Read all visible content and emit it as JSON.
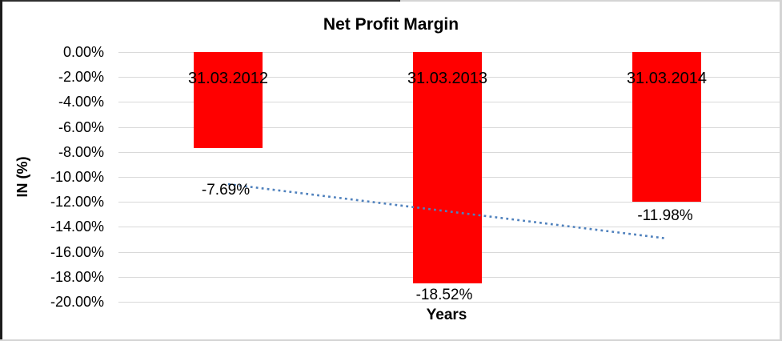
{
  "chart_data": {
    "type": "bar",
    "title": "Net Profit Margin",
    "xlabel": "Years",
    "ylabel": "IN (%)",
    "categories": [
      "31.03.2012",
      "31.03.2013",
      "31.03.2014"
    ],
    "series": [
      {
        "name": "Net Profit Margin",
        "values": [
          -7.69,
          -18.52,
          -11.98
        ]
      }
    ],
    "data_labels": [
      "-7.69%",
      "-18.52%",
      "-11.98%"
    ],
    "y_ticks": [
      "0.00%",
      "-2.00%",
      "-4.00%",
      "-6.00%",
      "-8.00%",
      "-10.00%",
      "-12.00%",
      "-14.00%",
      "-16.00%",
      "-18.00%",
      "-20.00%"
    ],
    "ylim": [
      -20,
      0
    ],
    "y_tick_step": 2,
    "grid": true,
    "legend": "none",
    "bar_color": "#FF0000",
    "gridline_color": "#d9d9d9",
    "trendline": {
      "type": "linear",
      "style": "dotted",
      "color": "#4F81BD",
      "start_value": -10.58,
      "end_value": -14.93
    }
  }
}
